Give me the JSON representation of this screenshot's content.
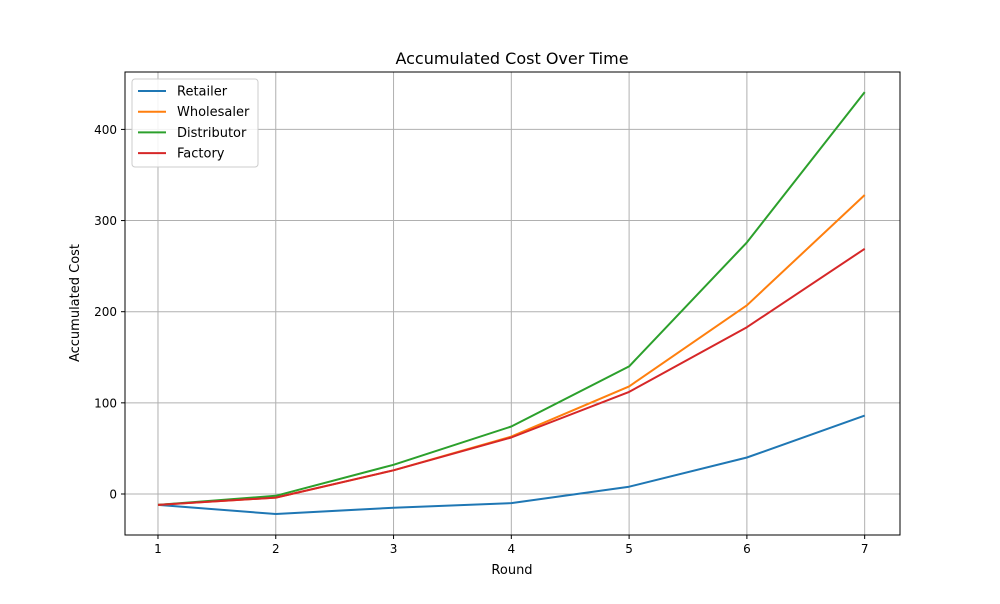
{
  "chart_data": {
    "type": "line",
    "title": "Accumulated Cost Over Time",
    "xlabel": "Round",
    "ylabel": "Accumulated Cost",
    "x": [
      1,
      2,
      3,
      4,
      5,
      6,
      7
    ],
    "xlim": [
      0.72,
      7.3
    ],
    "ylim": [
      -45,
      463
    ],
    "xticks": [
      1,
      2,
      3,
      4,
      5,
      6,
      7
    ],
    "yticks": [
      0,
      100,
      200,
      300,
      400
    ],
    "grid": true,
    "legend_position": "top-left",
    "series": [
      {
        "name": "Retailer",
        "color": "#1f77b4",
        "values": [
          -12,
          -22,
          -15,
          -10,
          8,
          40,
          86
        ]
      },
      {
        "name": "Wholesaler",
        "color": "#ff7f0e",
        "values": [
          -12,
          -4,
          26,
          63,
          118,
          207,
          328
        ]
      },
      {
        "name": "Distributor",
        "color": "#2ca02c",
        "values": [
          -12,
          -2,
          32,
          74,
          140,
          276,
          441
        ]
      },
      {
        "name": "Factory",
        "color": "#d62728",
        "values": [
          -12,
          -4,
          26,
          62,
          112,
          183,
          269
        ]
      }
    ]
  }
}
